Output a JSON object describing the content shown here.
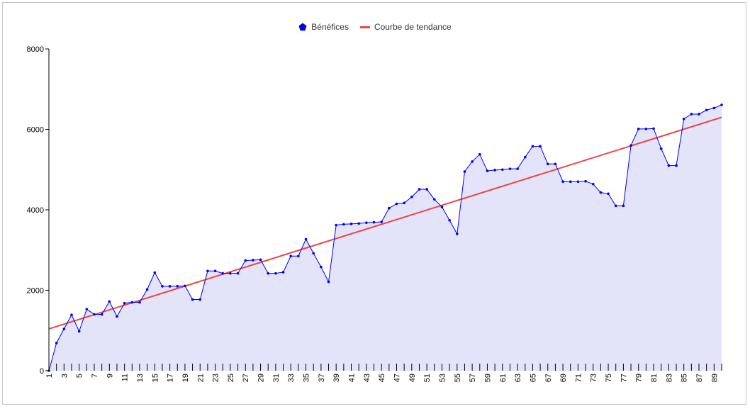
{
  "chart_data": {
    "type": "area",
    "legend": {
      "placement": "top-center"
    },
    "grid": false,
    "ylim": [
      0,
      8000
    ],
    "yticks": [
      0,
      2000,
      4000,
      6000,
      8000
    ],
    "xlim": [
      1,
      90
    ],
    "xtick_labels": [
      "1",
      "3",
      "5",
      "7",
      "9",
      "11",
      "13",
      "15",
      "17",
      "19",
      "21",
      "23",
      "25",
      "27",
      "29",
      "31",
      "33",
      "35",
      "37",
      "39",
      "41",
      "43",
      "45",
      "47",
      "49",
      "51",
      "53",
      "55",
      "57",
      "59",
      "61",
      "63",
      "65",
      "67",
      "69",
      "71",
      "73",
      "75",
      "77",
      "79",
      "81",
      "83",
      "85",
      "87",
      "89"
    ],
    "x": [
      1,
      2,
      3,
      4,
      5,
      6,
      7,
      8,
      9,
      10,
      11,
      12,
      13,
      14,
      15,
      16,
      17,
      18,
      19,
      20,
      21,
      22,
      23,
      24,
      25,
      26,
      27,
      28,
      29,
      30,
      31,
      32,
      33,
      34,
      35,
      36,
      37,
      38,
      39,
      40,
      41,
      42,
      43,
      44,
      45,
      46,
      47,
      48,
      49,
      50,
      51,
      52,
      53,
      54,
      55,
      56,
      57,
      58,
      59,
      60,
      61,
      62,
      63,
      64,
      65,
      66,
      67,
      68,
      69,
      70,
      71,
      72,
      73,
      74,
      75,
      76,
      77,
      78,
      79,
      80,
      81,
      82,
      83,
      84,
      85,
      86,
      87,
      88,
      89,
      90
    ],
    "series": [
      {
        "name": "Bénéfices",
        "kind": "area",
        "color": "#0000ee",
        "fill": "#e3e3fa",
        "marker": "pentagon",
        "values": [
          0,
          690,
          1040,
          1390,
          980,
          1530,
          1400,
          1400,
          1720,
          1350,
          1680,
          1700,
          1700,
          2020,
          2440,
          2100,
          2100,
          2100,
          2110,
          1770,
          1770,
          2480,
          2480,
          2420,
          2420,
          2420,
          2740,
          2750,
          2760,
          2420,
          2420,
          2450,
          2850,
          2850,
          3270,
          2920,
          2580,
          2210,
          3620,
          3640,
          3650,
          3660,
          3680,
          3690,
          3700,
          4040,
          4150,
          4170,
          4320,
          4510,
          4510,
          4260,
          4070,
          3740,
          3400,
          4950,
          5200,
          5380,
          4970,
          4990,
          5000,
          5020,
          5020,
          5310,
          5580,
          5580,
          5140,
          5140,
          4700,
          4700,
          4700,
          4710,
          4640,
          4430,
          4400,
          4100,
          4100,
          5600,
          6010,
          6010,
          6020,
          5520,
          5100,
          5100,
          6260,
          6380,
          6380,
          6480,
          6530,
          6610
        ]
      },
      {
        "name": "Courbe de tendance",
        "kind": "line",
        "color": "#ee4444",
        "start": [
          1,
          1040
        ],
        "end": [
          90,
          6300
        ]
      }
    ]
  }
}
